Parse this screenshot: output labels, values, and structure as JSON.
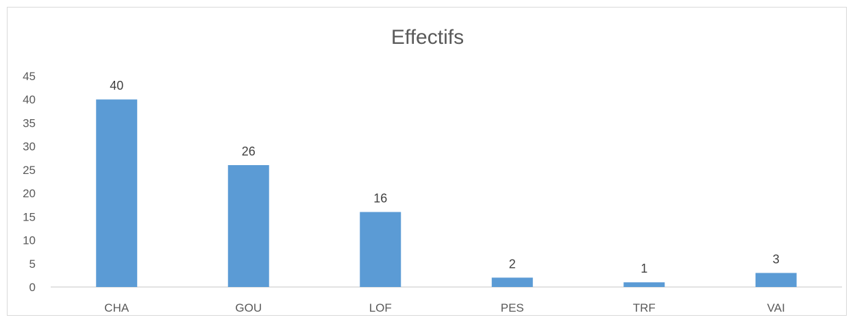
{
  "chart_data": {
    "type": "bar",
    "title": "Effectifs",
    "categories": [
      "CHA",
      "GOU",
      "LOF",
      "PES",
      "TRF",
      "VAI"
    ],
    "values": [
      40,
      26,
      16,
      2,
      1,
      3
    ],
    "ylim": [
      0,
      45
    ],
    "y_ticks": [
      0,
      5,
      10,
      15,
      20,
      25,
      30,
      35,
      40,
      45
    ],
    "grid": false,
    "legend": "none",
    "bar_color": "#5b9bd5",
    "data_labels": true
  }
}
